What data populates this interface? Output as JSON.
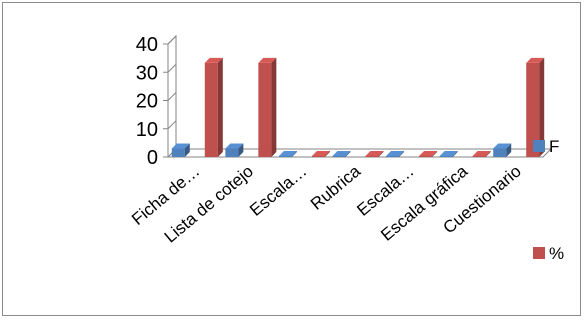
{
  "chart_data": {
    "type": "bar",
    "subtype": "3d-clustered-column",
    "categories": [
      "Ficha de…",
      "Lista de cotejo",
      "Escala…",
      "Rubrica",
      "Escala…",
      "Escala gráfica",
      "Cuestionario"
    ],
    "series": [
      {
        "name": "F",
        "values": [
          3,
          3,
          0,
          0,
          0,
          0,
          3
        ]
      },
      {
        "name": "%",
        "values": [
          33.3,
          33.3,
          0,
          0,
          0,
          0,
          33.3
        ]
      }
    ],
    "yticks": [
      0,
      10,
      20,
      30,
      40
    ],
    "ylim": [
      0,
      40
    ],
    "grid": false,
    "legend_position": "right",
    "colors": {
      "F": "#4f81bd",
      "%": "#c0504d"
    }
  }
}
